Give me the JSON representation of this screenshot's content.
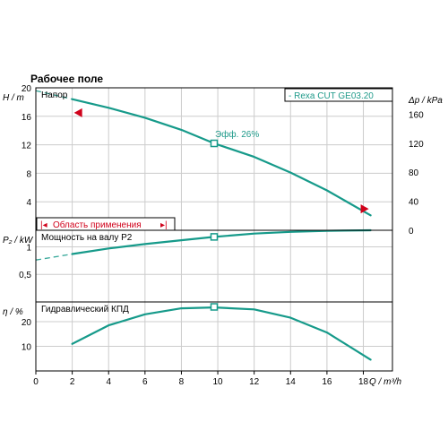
{
  "title": "Рабочее поле",
  "colors": {
    "curve": "#169a8a",
    "grid": "#cccccc",
    "accent": "#d0021b"
  },
  "chart_data": [
    {
      "type": "line",
      "panel": "head",
      "ylabel": "H / m",
      "ylabel_right": "Δp / kPa",
      "panel_label": "Напор",
      "legend": "-   Rexa CUT GE03.20",
      "ylim": [
        0,
        20
      ],
      "yticks": [
        "4",
        "8",
        "12",
        "16",
        "20"
      ],
      "yticks_right": [
        "0",
        "40",
        "80",
        "120",
        "160"
      ],
      "yticks_right_values": [
        0,
        40,
        80,
        120,
        160
      ],
      "kpa_per_m": 9.81,
      "series": [
        {
          "x": [
            2,
            4,
            6,
            8,
            9.8,
            12,
            14,
            16,
            18.4
          ],
          "y": [
            18.4,
            17.2,
            15.8,
            14.1,
            12.2,
            10.3,
            8.1,
            5.6,
            2.1
          ]
        }
      ],
      "extrapolation": {
        "x": [
          0,
          2
        ],
        "y": [
          19.6,
          18.4
        ]
      },
      "operating_point": {
        "x": 9.8,
        "y": 12.2,
        "label": "Эфф.  26%"
      },
      "range_markers": [
        {
          "x": 2.1,
          "y": 16.5
        },
        {
          "x": 18.3,
          "y": 3.0
        }
      ],
      "range_label": "Область применения"
    },
    {
      "type": "line",
      "panel": "power",
      "ylabel": "P₂ / kW",
      "panel_label": "Мощность на валу P2",
      "ylim": [
        0,
        1.3
      ],
      "yticks": [
        "0,5",
        "1"
      ],
      "yticks_values": [
        0.5,
        1
      ],
      "series": [
        {
          "x": [
            2,
            4,
            6,
            8,
            9.8,
            12,
            14,
            16,
            18.4
          ],
          "y": [
            0.87,
            0.97,
            1.05,
            1.12,
            1.18,
            1.24,
            1.27,
            1.29,
            1.3
          ]
        }
      ],
      "extrapolation": {
        "x": [
          0,
          2
        ],
        "y": [
          0.76,
          0.87
        ]
      },
      "operating_point": {
        "x": 9.8,
        "y": 1.18
      }
    },
    {
      "type": "line",
      "panel": "efficiency",
      "ylabel": "η / %",
      "panel_label": "Гидравлический КПД",
      "ylim": [
        0,
        28
      ],
      "yticks": [
        "10",
        "20"
      ],
      "yticks_values": [
        10,
        20
      ],
      "series": [
        {
          "x": [
            2,
            4,
            6,
            8,
            9.8,
            12,
            14,
            16,
            18.4
          ],
          "y": [
            11,
            18.5,
            23,
            25.4,
            25.8,
            25,
            21.6,
            15.6,
            4.6
          ]
        }
      ],
      "operating_point": {
        "x": 9.8,
        "y": 26
      }
    }
  ],
  "x_axis": {
    "label": "Q / m³/h",
    "xlim": [
      0,
      19.6
    ],
    "ticks": [
      "0",
      "2",
      "4",
      "6",
      "8",
      "10",
      "12",
      "14",
      "16",
      "18"
    ],
    "tick_values": [
      0,
      2,
      4,
      6,
      8,
      10,
      12,
      14,
      16,
      18
    ]
  }
}
